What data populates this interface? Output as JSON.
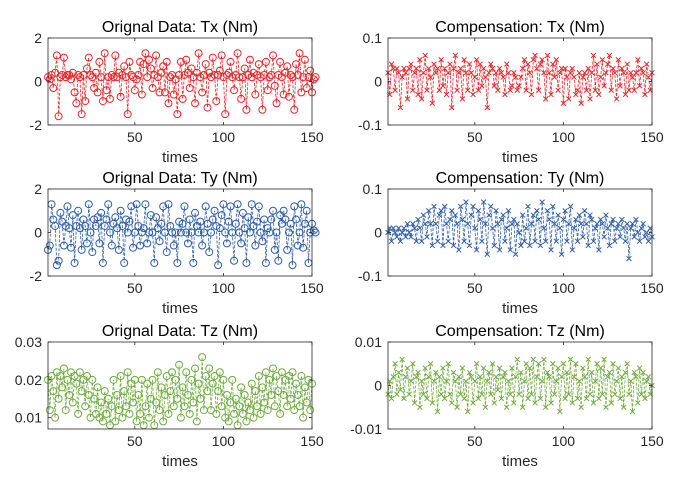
{
  "chart_data": [
    {
      "type": "line",
      "marker": "circle",
      "title": "Orignal Data: Tx (Nm)",
      "xlabel": "times",
      "ylabel": "",
      "xlim": [
        1,
        150
      ],
      "ylim": [
        -2,
        2
      ],
      "xticks": [
        50,
        100,
        150
      ],
      "yticks": [
        -2,
        0,
        2
      ],
      "ytick_labels": [
        "-2",
        "0",
        "2"
      ],
      "grid": false,
      "color": "#e8262a",
      "y": [
        0.2,
        0.1,
        0.3,
        -0.3,
        0.4,
        1.2,
        -1.6,
        0.2,
        0.3,
        1.1,
        0.2,
        0.3,
        0.3,
        0.1,
        0.4,
        -0.5,
        -1.0,
        0.3,
        0.2,
        -1.5,
        0.3,
        -0.9,
        0.6,
        1.1,
        0.3,
        0.2,
        -0.3,
        0.4,
        -0.5,
        0.9,
        0.2,
        -0.9,
        1.3,
        -0.4,
        0.2,
        -0.8,
        0.3,
        0.2,
        1.2,
        0.2,
        0.4,
        -0.7,
        0.3,
        0.7,
        0.2,
        -1.5,
        0.9,
        0.3,
        0.2,
        -0.4,
        0.1,
        0.3,
        0.9,
        -0.6,
        0.8,
        1.3,
        0.2,
        1.0,
        0.6,
        -0.3,
        0.3,
        1.2,
        0.2,
        -0.5,
        0.4,
        0.7,
        -0.5,
        0.9,
        -1.0,
        0.2,
        0.3,
        -0.6,
        0.1,
        -1.5,
        0.3,
        0.9,
        -0.8,
        0.3,
        1.0,
        0.4,
        -0.3,
        0.6,
        0.2,
        -1.0,
        0.4,
        1.3,
        0.2,
        -0.5,
        0.3,
        0.8,
        -1.2,
        0.4,
        0.2,
        1.1,
        0.3,
        -0.9,
        0.3,
        0.5,
        1.2,
        0.2,
        -1.5,
        0.3,
        0.4,
        0.9,
        0.2,
        -0.4,
        0.3,
        1.3,
        0.2,
        -0.8,
        0.2,
        0.6,
        -1.3,
        0.3,
        1.0,
        0.2,
        0.4,
        -0.6,
        0.3,
        0.8,
        0.2,
        -1.3,
        0.3,
        0.9,
        -0.4,
        0.2,
        0.3,
        1.2,
        -0.2,
        -1.0,
        0.3,
        0.9,
        0.2,
        -0.6,
        0.4,
        0.7,
        -0.7,
        0.3,
        0.2,
        -1.3,
        0.8,
        0.3,
        1.3,
        -0.5,
        0.2,
        1.0,
        -0.3,
        0.2,
        0.5,
        -0.5,
        0.1,
        0.2
      ]
    },
    {
      "type": "line",
      "marker": "x",
      "title": "Compensation: Tx (Nm)",
      "xlabel": "times",
      "ylabel": "",
      "xlim": [
        1,
        150
      ],
      "ylim": [
        -0.1,
        0.1
      ],
      "xticks": [
        50,
        100,
        150
      ],
      "yticks": [
        -0.1,
        0,
        0.1
      ],
      "ytick_labels": [
        "-0.1",
        "0",
        "0.1"
      ],
      "grid": false,
      "color": "#e8262a",
      "y": [
        0.02,
        -0.03,
        0.04,
        0.03,
        -0.02,
        0.03,
        0.02,
        -0.06,
        0.01,
        0.03,
        0.02,
        -0.04,
        0.03,
        0.04,
        -0.02,
        0.02,
        0.03,
        -0.03,
        0.05,
        -0.04,
        0.02,
        0.06,
        -0.02,
        0.03,
        0.01,
        -0.05,
        0.04,
        0.02,
        0.03,
        -0.02,
        0.05,
        -0.01,
        0.03,
        -0.03,
        0.02,
        0.04,
        -0.06,
        0.03,
        0.06,
        -0.02,
        0.02,
        0.03,
        -0.04,
        0.05,
        0.02,
        -0.02,
        0.04,
        0.02,
        -0.03,
        0.01,
        0.05,
        -0.02,
        0.04,
        -0.01,
        0.03,
        0.01,
        -0.06,
        0.02,
        0.04,
        0.03,
        -0.01,
        0.02,
        -0.02,
        0.03,
        0.02,
        0.01,
        -0.03,
        0.04,
        0.02,
        -0.02,
        -0.01,
        0.02,
        0.01,
        -0.02,
        -0.01,
        0.01,
        0.03,
        0.05,
        -0.02,
        0.04,
        0.02,
        -0.03,
        0.05,
        0.06,
        0.03,
        -0.02,
        0.04,
        0.05,
        0.02,
        -0.04,
        0.06,
        0.02,
        -0.03,
        0.04,
        0.01,
        0.05,
        -0.02,
        0.02,
        0.03,
        -0.05,
        0.03,
        0.01,
        -0.04,
        0.02,
        0.03,
        0.01,
        -0.03,
        -0.02,
        0.02,
        -0.05,
        0.01,
        0.02,
        -0.02,
        0.03,
        -0.04,
        0.02,
        0.06,
        -0.02,
        0.04,
        -0.03,
        0.01,
        0.05,
        -0.01,
        0.02,
        0.04,
        0.06,
        -0.02,
        0.03,
        0.02,
        -0.04,
        0.05,
        -0.01,
        0.03,
        0.02,
        -0.03,
        0.04,
        -0.02,
        0.02,
        0.01,
        -0.02,
        0.02,
        0.05,
        -0.01,
        0.03,
        0.02,
        -0.03,
        0.04,
        0.01,
        -0.02,
        0.02
      ]
    },
    {
      "type": "line",
      "marker": "circle",
      "title": "Orignal Data: Ty (Nm)",
      "xlabel": "times",
      "ylabel": "",
      "xlim": [
        1,
        150
      ],
      "ylim": [
        -2,
        2
      ],
      "xticks": [
        50,
        100,
        150
      ],
      "yticks": [
        -2,
        0,
        2
      ],
      "ytick_labels": [
        "-2",
        "0",
        "2"
      ],
      "grid": false,
      "color": "#2e5ea8",
      "y": [
        -0.8,
        -0.6,
        1.3,
        0.6,
        0.3,
        -1.5,
        -1.3,
        0.9,
        0.5,
        -0.6,
        0.3,
        1.2,
        0.2,
        -0.7,
        0.8,
        -1.4,
        0.3,
        1.0,
        0.2,
        -0.8,
        0.6,
        0.3,
        -0.5,
        1.3,
        0.0,
        -0.9,
        0.6,
        0.3,
        0.7,
        -0.5,
        0.9,
        -1.4,
        0.3,
        0.6,
        1.3,
        0.0,
        -0.6,
        0.4,
        0.7,
        0.2,
        -0.8,
        1.0,
        0.3,
        -1.4,
        0.6,
        0.0,
        0.5,
        1.2,
        -0.7,
        0.0,
        1.3,
        0.3,
        -0.6,
        0.0,
        0.2,
        1.3,
        -0.5,
        0.0,
        0.8,
        0.0,
        -1.4,
        0.7,
        0.2,
        -0.4,
        0.4,
        1.2,
        0.0,
        -0.9,
        1.3,
        0.3,
        0.0,
        -0.6,
        0.0,
        -1.4,
        0.5,
        0.0,
        0.4,
        1.2,
        0.0,
        -0.5,
        0.6,
        0.0,
        -1.4,
        0.9,
        0.3,
        0.0,
        0.5,
        -0.6,
        0.0,
        1.2,
        0.4,
        -0.9,
        0.0,
        0.6,
        1.0,
        0.3,
        -1.5,
        0.2,
        0.8,
        1.3,
        0.0,
        -0.5,
        0.5,
        1.2,
        0.0,
        -1.3,
        0.4,
        1.3,
        0.0,
        -0.5,
        0.9,
        0.2,
        -1.4,
        0.7,
        0.0,
        1.3,
        0.3,
        -0.6,
        0.5,
        1.2,
        0.0,
        -0.4,
        0.6,
        -1.4,
        0.2,
        0.0,
        0.6,
        1.0,
        -0.8,
        0.0,
        -1.3,
        0.8,
        0.4,
        1.0,
        0.6,
        -0.8,
        0.0,
        0.4,
        -1.5,
        1.2,
        0.6,
        -0.6,
        0.0,
        1.3,
        -0.7,
        0.4,
        1.0,
        -1.4,
        0.0,
        0.4,
        0.1,
        0.0
      ]
    },
    {
      "type": "line",
      "marker": "x",
      "title": "Compensation: Ty (Nm)",
      "xlabel": "times",
      "ylabel": "",
      "xlim": [
        1,
        150
      ],
      "ylim": [
        -0.1,
        0.1
      ],
      "xticks": [
        50,
        100,
        150
      ],
      "yticks": [
        -0.1,
        0,
        0.1
      ],
      "ytick_labels": [
        "-0.1",
        "0",
        "0.1"
      ],
      "grid": false,
      "color": "#2e5ea8",
      "y": [
        0.0,
        0.01,
        -0.02,
        0.01,
        0.0,
        -0.01,
        0.01,
        -0.02,
        0.0,
        0.01,
        -0.01,
        0.02,
        0.0,
        -0.01,
        0.02,
        0.01,
        -0.02,
        0.03,
        0.01,
        -0.02,
        0.04,
        0.02,
        -0.01,
        0.05,
        0.02,
        -0.03,
        0.06,
        0.02,
        -0.02,
        0.04,
        0.05,
        -0.03,
        0.06,
        0.02,
        -0.02,
        0.03,
        0.05,
        -0.03,
        0.04,
        0.02,
        -0.04,
        0.06,
        0.03,
        -0.02,
        0.07,
        0.02,
        -0.03,
        0.04,
        0.06,
        0.01,
        -0.04,
        0.05,
        0.03,
        -0.02,
        0.07,
        0.02,
        -0.05,
        0.04,
        0.06,
        0.01,
        -0.03,
        0.05,
        0.02,
        -0.04,
        0.03,
        0.04,
        -0.02,
        0.01,
        0.05,
        -0.04,
        0.02,
        0.03,
        -0.05,
        0.02,
        0.0,
        -0.03,
        0.04,
        -0.02,
        0.01,
        0.06,
        -0.03,
        0.02,
        0.04,
        -0.02,
        0.05,
        0.03,
        -0.03,
        0.07,
        0.01,
        -0.02,
        0.05,
        0.03,
        -0.04,
        0.06,
        0.02,
        -0.02,
        0.04,
        0.01,
        -0.05,
        0.03,
        0.05,
        -0.02,
        0.02,
        0.06,
        -0.04,
        0.01,
        0.03,
        -0.02,
        0.04,
        0.02,
        -0.01,
        0.05,
        0.02,
        -0.03,
        0.04,
        0.03,
        -0.02,
        0.01,
        0.02,
        -0.04,
        0.03,
        0.02,
        -0.01,
        0.04,
        0.01,
        -0.03,
        0.02,
        0.03,
        -0.02,
        0.01,
        0.02,
        -0.01,
        0.03,
        0.01,
        -0.02,
        0.02,
        -0.06,
        0.01,
        0.02,
        -0.01,
        0.03,
        0.0,
        -0.02,
        0.01,
        0.02,
        -0.01,
        0.0,
        -0.02,
        0.01,
        -0.01
      ]
    },
    {
      "type": "line",
      "marker": "circle",
      "title": "Orignal Data: Tz (Nm)",
      "xlabel": "times",
      "ylabel": "",
      "xlim": [
        1,
        150
      ],
      "ylim": [
        0.007,
        0.03
      ],
      "xticks": [
        50,
        100,
        150
      ],
      "yticks": [
        0.01,
        0.02,
        0.03
      ],
      "ytick_labels": [
        "0.01",
        "0.02",
        "0.03"
      ],
      "grid": false,
      "color": "#6fab3e",
      "y": [
        0.02,
        0.012,
        0.021,
        0.017,
        0.01,
        0.022,
        0.015,
        0.021,
        0.018,
        0.023,
        0.012,
        0.02,
        0.016,
        0.022,
        0.014,
        0.021,
        0.019,
        0.011,
        0.022,
        0.017,
        0.02,
        0.013,
        0.021,
        0.016,
        0.01,
        0.02,
        0.015,
        0.011,
        0.018,
        0.01,
        0.014,
        0.009,
        0.017,
        0.011,
        0.015,
        0.008,
        0.013,
        0.02,
        0.009,
        0.016,
        0.012,
        0.021,
        0.01,
        0.017,
        0.013,
        0.022,
        0.011,
        0.019,
        0.014,
        0.02,
        0.009,
        0.016,
        0.011,
        0.02,
        0.008,
        0.013,
        0.019,
        0.01,
        0.015,
        0.02,
        0.008,
        0.014,
        0.022,
        0.012,
        0.018,
        0.009,
        0.016,
        0.021,
        0.011,
        0.017,
        0.022,
        0.013,
        0.02,
        0.015,
        0.024,
        0.01,
        0.018,
        0.013,
        0.022,
        0.016,
        0.011,
        0.02,
        0.014,
        0.023,
        0.009,
        0.019,
        0.015,
        0.026,
        0.012,
        0.021,
        0.017,
        0.023,
        0.012,
        0.019,
        0.021,
        0.011,
        0.017,
        0.022,
        0.013,
        0.02,
        0.01,
        0.016,
        0.009,
        0.014,
        0.02,
        0.011,
        0.015,
        0.008,
        0.013,
        0.018,
        0.011,
        0.016,
        0.009,
        0.014,
        0.012,
        0.019,
        0.01,
        0.017,
        0.013,
        0.021,
        0.011,
        0.018,
        0.014,
        0.022,
        0.012,
        0.02,
        0.016,
        0.023,
        0.013,
        0.021,
        0.017,
        0.011,
        0.022,
        0.016,
        0.02,
        0.013,
        0.021,
        0.015,
        0.022,
        0.012,
        0.019,
        0.016,
        0.013,
        0.021,
        0.01,
        0.018,
        0.014,
        0.02,
        0.012,
        0.019
      ]
    },
    {
      "type": "line",
      "marker": "x",
      "title": "Compensation: Tz (Nm)",
      "xlabel": "times",
      "ylabel": "",
      "xlim": [
        1,
        150
      ],
      "ylim": [
        -0.01,
        0.01
      ],
      "xticks": [
        50,
        100,
        150
      ],
      "yticks": [
        -0.01,
        0,
        0.01
      ],
      "ytick_labels": [
        "-0.01",
        "0",
        "0.01"
      ],
      "grid": false,
      "color": "#6fab3e",
      "y": [
        -0.002,
        0.001,
        -0.003,
        0.002,
        0.005,
        -0.002,
        0.003,
        -0.001,
        0.006,
        -0.003,
        0.002,
        0.004,
        -0.002,
        0.001,
        0.005,
        -0.004,
        0.002,
        0.003,
        -0.005,
        0.001,
        -0.002,
        0.004,
        -0.003,
        0.002,
        0.005,
        -0.004,
        0.001,
        0.003,
        -0.006,
        0.002,
        -0.002,
        0.004,
        -0.003,
        0.001,
        0.005,
        -0.002,
        -0.004,
        0.003,
        0.001,
        -0.005,
        0.002,
        -0.002,
        0.004,
        -0.003,
        0.001,
        -0.006,
        0.003,
        0.002,
        -0.004,
        0.001,
        0.005,
        -0.003,
        0.002,
        -0.002,
        0.004,
        -0.005,
        0.001,
        0.003,
        -0.002,
        0.005,
        -0.004,
        0.002,
        -0.001,
        0.004,
        -0.003,
        0.002,
        0.003,
        -0.005,
        0.001,
        -0.002,
        0.004,
        -0.004,
        0.002,
        0.006,
        -0.002,
        0.003,
        -0.005,
        0.001,
        0.005,
        -0.003,
        0.004,
        -0.002,
        0.006,
        -0.004,
        0.002,
        0.005,
        -0.003,
        0.001,
        0.006,
        -0.005,
        0.003,
        0.002,
        -0.004,
        0.005,
        -0.002,
        0.001,
        0.004,
        -0.006,
        0.002,
        0.005,
        -0.003,
        0.003,
        -0.002,
        0.006,
        -0.004,
        0.002,
        0.005,
        -0.003,
        0.001,
        -0.005,
        0.004,
        0.002,
        -0.003,
        0.006,
        -0.002,
        0.003,
        -0.004,
        0.001,
        0.005,
        -0.003,
        0.004,
        -0.002,
        0.006,
        -0.005,
        0.002,
        0.003,
        -0.004,
        0.005,
        -0.002,
        0.001,
        0.004,
        -0.003,
        0.002,
        -0.005,
        0.003,
        0.005,
        -0.002,
        0.001,
        -0.006,
        0.003,
        0.002,
        -0.004,
        0.004,
        -0.002,
        0.003,
        -0.003,
        0.001,
        0.002,
        -0.002,
        0.0
      ]
    }
  ]
}
